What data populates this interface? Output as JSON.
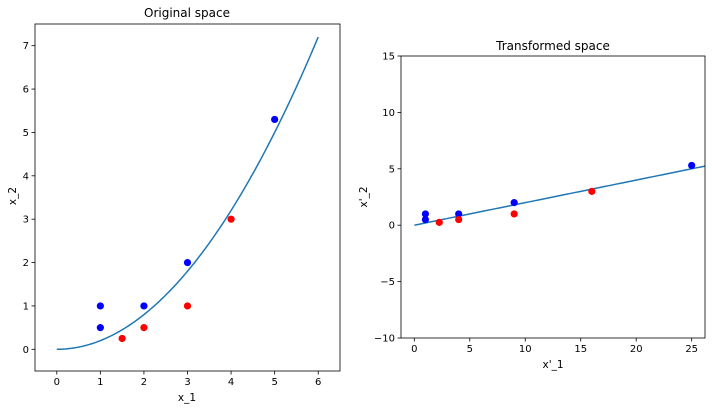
{
  "chart_data": [
    {
      "type": "scatter",
      "title": "Original space",
      "xlabel": "x_1",
      "ylabel": "x_2",
      "xlim": [
        -0.5,
        6.5
      ],
      "ylim": [
        -0.5,
        7.5
      ],
      "xticks": [
        "0",
        "1",
        "2",
        "3",
        "4",
        "5",
        "6"
      ],
      "yticks": [
        "0",
        "1",
        "2",
        "3",
        "4",
        "5",
        "6",
        "7"
      ],
      "series": [
        {
          "color": "#0000ff",
          "points": [
            [
              1,
              1
            ],
            [
              1,
              0.5
            ],
            [
              2,
              1
            ],
            [
              3,
              2
            ],
            [
              5,
              5.3
            ]
          ]
        },
        {
          "color": "#ff0000",
          "points": [
            [
              1.5,
              0.25
            ],
            [
              2,
              0.5
            ],
            [
              3,
              1
            ],
            [
              4,
              3
            ]
          ]
        }
      ],
      "line": {
        "color": "#1f77b4",
        "function": "x^2/5",
        "x_range": [
          0,
          6
        ]
      }
    },
    {
      "type": "scatter",
      "title": "Transformed space",
      "xlabel": "x'_1",
      "ylabel": "x'_2",
      "xlim": [
        -1.2,
        26.2
      ],
      "ylim": [
        -10,
        15
      ],
      "xticks": [
        "0",
        "5",
        "10",
        "15",
        "20",
        "25"
      ],
      "yticks": [
        "−10",
        "−5",
        "0",
        "5",
        "10",
        "15"
      ],
      "series": [
        {
          "color": "#0000ff",
          "points": [
            [
              1,
              1
            ],
            [
              1,
              0.5
            ],
            [
              4,
              1
            ],
            [
              9,
              2
            ],
            [
              25,
              5.3
            ]
          ]
        },
        {
          "color": "#ff0000",
          "points": [
            [
              2.25,
              0.25
            ],
            [
              4,
              0.5
            ],
            [
              9,
              1
            ],
            [
              16,
              3
            ]
          ]
        }
      ],
      "line": {
        "color": "#1f77b4",
        "function": "x/5",
        "x_range": [
          0,
          26.2
        ]
      }
    }
  ]
}
